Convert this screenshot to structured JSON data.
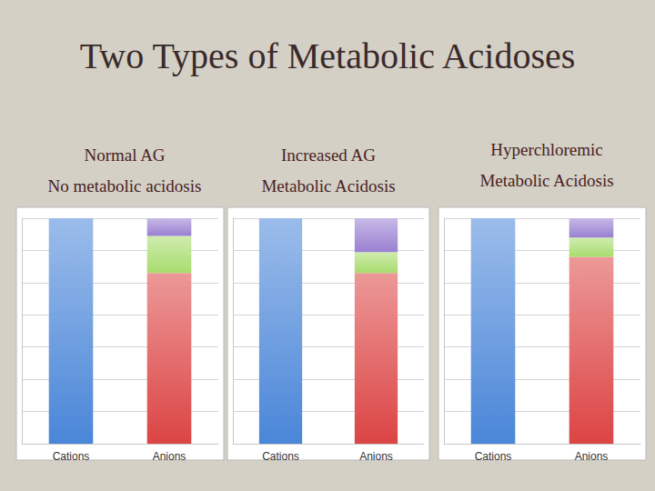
{
  "title": "Two Types of Metabolic Acidoses",
  "chart_data": [
    {
      "type": "bar",
      "title": "Normal AG\nNo metabolic acidosis",
      "categories": [
        "Cations",
        "Anions"
      ],
      "stacked": true,
      "grid": true,
      "tick_labels": "x",
      "ylim": [
        0,
        140
      ],
      "yticks": [
        0,
        20,
        40,
        60,
        80,
        100,
        120,
        140
      ],
      "series": [
        {
          "color": "#4a86d8",
          "values": [
            140,
            null
          ]
        },
        {
          "color": "#dc4444",
          "values": [
            null,
            106
          ]
        },
        {
          "color": "#a8dc6e",
          "values": [
            null,
            23
          ]
        },
        {
          "color": "#9a80d2",
          "values": [
            null,
            11
          ]
        }
      ]
    },
    {
      "type": "bar",
      "title": "Increased AG\nMetabolic Acidosis",
      "categories": [
        "Cations",
        "Anions"
      ],
      "stacked": true,
      "grid": true,
      "tick_labels": "x",
      "ylim": [
        0,
        140
      ],
      "yticks": [
        0,
        20,
        40,
        60,
        80,
        100,
        120,
        140
      ],
      "series": [
        {
          "color": "#4a86d8",
          "values": [
            140,
            null
          ]
        },
        {
          "color": "#dc4444",
          "values": [
            null,
            106
          ]
        },
        {
          "color": "#a8dc6e",
          "values": [
            null,
            13
          ]
        },
        {
          "color": "#9a80d2",
          "values": [
            null,
            21
          ]
        }
      ]
    },
    {
      "type": "bar",
      "title": "Hyperchloremic\nMetabolic Acidosis",
      "categories": [
        "Cations",
        "Anions"
      ],
      "stacked": true,
      "grid": true,
      "tick_labels": "x",
      "ylim": [
        0,
        140
      ],
      "yticks": [
        0,
        20,
        40,
        60,
        80,
        100,
        120,
        140
      ],
      "series": [
        {
          "color": "#4a86d8",
          "values": [
            140,
            null
          ]
        },
        {
          "color": "#dc4444",
          "values": [
            null,
            116
          ]
        },
        {
          "color": "#a8dc6e",
          "values": [
            null,
            12
          ]
        },
        {
          "color": "#9a80d2",
          "values": [
            null,
            12
          ]
        }
      ]
    }
  ]
}
